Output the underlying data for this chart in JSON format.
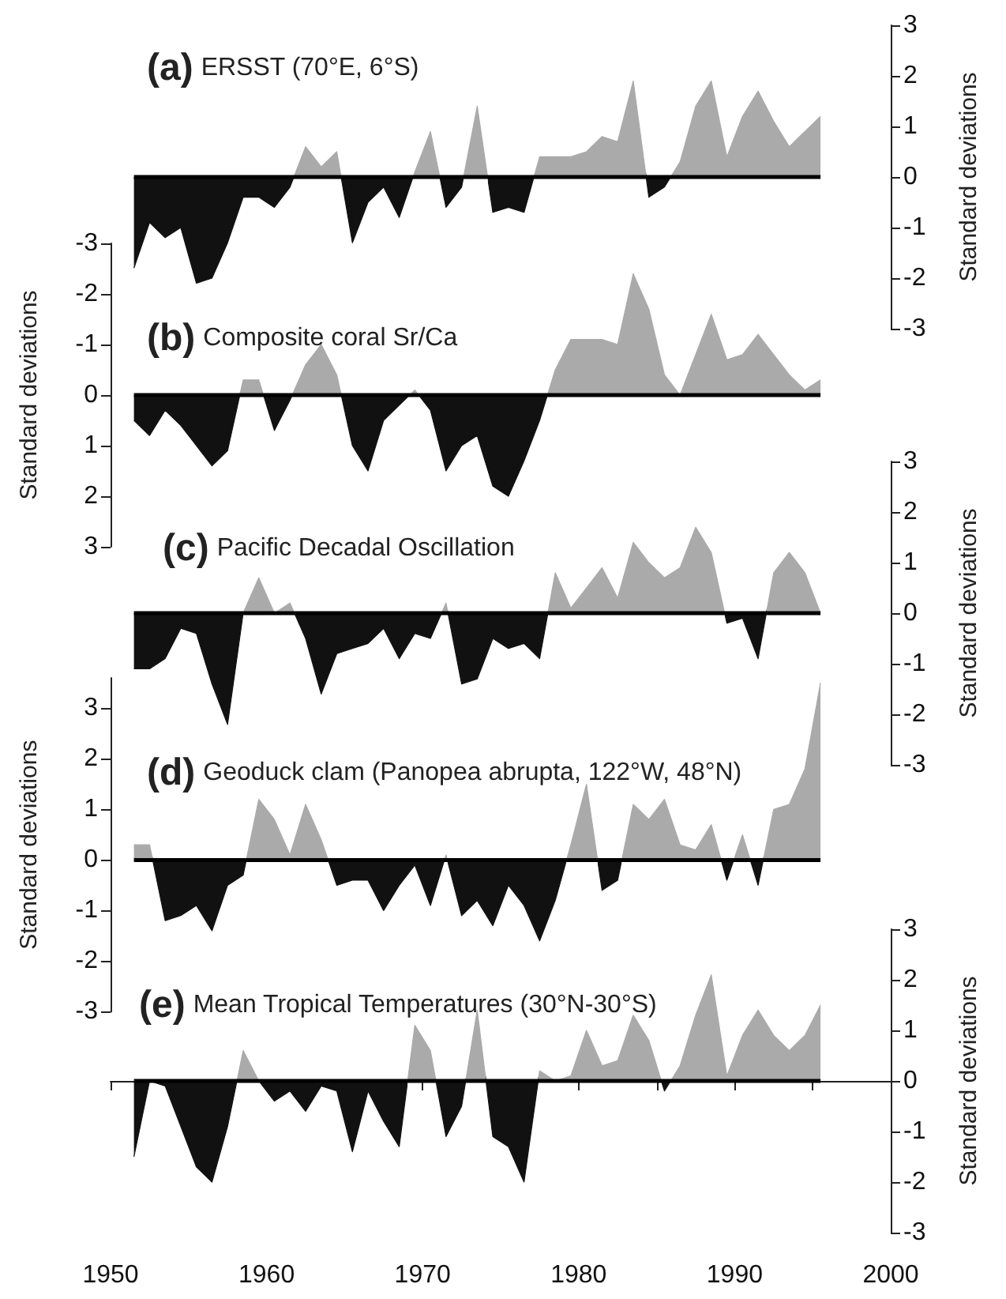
{
  "chart_data": [
    {
      "type": "area",
      "title": "(a) ERSST (70°E, 6°S)",
      "y2label": "Standard deviations",
      "xlim": [
        1950,
        2000
      ],
      "y2lim": [
        -3,
        3
      ],
      "y2ticks": [
        -3,
        -2,
        -1,
        0,
        1,
        2,
        3
      ],
      "tick_labels": "y",
      "x": [
        1951.5,
        1952.5,
        1953.5,
        1954.5,
        1955.5,
        1956.5,
        1957.5,
        1958.5,
        1959.5,
        1960.5,
        1961.5,
        1962.5,
        1963.5,
        1964.5,
        1965.5,
        1966.5,
        1967.5,
        1968.5,
        1969.5,
        1970.5,
        1971.5,
        1972.5,
        1973.5,
        1974.5,
        1975.5,
        1976.5,
        1977.5,
        1978.5,
        1979.5,
        1980.5,
        1981.5,
        1982.5,
        1983.5,
        1984.5,
        1985.5,
        1986.5,
        1987.5,
        1988.5,
        1989.5,
        1990.5,
        1991.5,
        1992.5,
        1993.5,
        1994.5,
        1995.5
      ],
      "series": [
        {
          "axis": "y2",
          "values": [
            -1.8,
            -0.9,
            -1.2,
            -1.0,
            -2.1,
            -2.0,
            -1.3,
            -0.4,
            -0.4,
            -0.6,
            -0.2,
            0.6,
            0.2,
            0.5,
            -1.3,
            -0.5,
            -0.2,
            -0.8,
            0.1,
            0.9,
            -0.6,
            -0.2,
            1.4,
            -0.7,
            -0.6,
            -0.7,
            0.4,
            0.4,
            0.4,
            0.5,
            0.8,
            0.7,
            1.9,
            -0.4,
            -0.2,
            0.3,
            1.4,
            1.9,
            0.4,
            1.2,
            1.7,
            1.1,
            0.6,
            0.9,
            1.2
          ],
          "colors": [
            "#111111",
            "#111111",
            "#111111",
            "#111111",
            "#111111",
            "#111111",
            "#111111",
            "#111111",
            "#111111",
            "#111111",
            "#111111",
            "#aaaaaa",
            "#aaaaaa",
            "#aaaaaa",
            "#111111",
            "#111111",
            "#111111",
            "#111111",
            "#aaaaaa",
            "#aaaaaa",
            "#111111",
            "#111111",
            "#aaaaaa",
            "#111111",
            "#111111",
            "#111111",
            "#aaaaaa",
            "#aaaaaa",
            "#aaaaaa",
            "#aaaaaa",
            "#aaaaaa",
            "#aaaaaa",
            "#aaaaaa",
            "#111111",
            "#111111",
            "#aaaaaa",
            "#aaaaaa",
            "#aaaaaa",
            "#aaaaaa",
            "#aaaaaa",
            "#aaaaaa",
            "#aaaaaa",
            "#aaaaaa",
            "#aaaaaa",
            "#aaaaaa"
          ]
        }
      ],
      "ref_lines": [
        {
          "axis": "y2",
          "value": 0,
          "color": "#000000"
        }
      ]
    },
    {
      "type": "area",
      "title": "(b) Composite coral Sr/Ca",
      "ylabel": "Standard deviations",
      "xlim": [
        1950,
        2000
      ],
      "ylim": [
        3,
        -3
      ],
      "yticks": [
        -3,
        -2,
        -1,
        0,
        1,
        2,
        3
      ],
      "tick_labels": "y",
      "x": [
        1951.5,
        1952.5,
        1953.5,
        1954.5,
        1955.5,
        1956.5,
        1957.5,
        1958.5,
        1959.5,
        1960.5,
        1961.5,
        1962.5,
        1963.5,
        1964.5,
        1965.5,
        1966.5,
        1967.5,
        1968.5,
        1969.5,
        1970.5,
        1971.5,
        1972.5,
        1973.5,
        1974.5,
        1975.5,
        1976.5,
        1977.5,
        1978.5,
        1979.5,
        1980.5,
        1981.5,
        1982.5,
        1983.5,
        1984.5,
        1985.5,
        1986.5,
        1987.5,
        1988.5,
        1989.5,
        1990.5,
        1991.5,
        1992.5,
        1993.5,
        1994.5,
        1995.5
      ],
      "series": [
        {
          "values": [
            0.5,
            0.8,
            0.3,
            0.6,
            1.0,
            1.4,
            1.1,
            -0.3,
            -0.3,
            0.7,
            0.1,
            -0.6,
            -1.0,
            -0.4,
            1.0,
            1.5,
            0.5,
            0.2,
            -0.1,
            0.3,
            1.5,
            1.0,
            0.8,
            1.8,
            2.0,
            1.3,
            0.5,
            -0.5,
            -1.1,
            -1.1,
            -1.1,
            -1.0,
            -2.4,
            -1.7,
            -0.4,
            0.0,
            -0.8,
            -1.6,
            -0.7,
            -0.8,
            -1.2,
            -0.8,
            -0.4,
            -0.1,
            -0.3
          ],
          "colors": [
            "#111111",
            "#111111",
            "#111111",
            "#111111",
            "#111111",
            "#111111",
            "#111111",
            "#aaaaaa",
            "#aaaaaa",
            "#111111",
            "#111111",
            "#aaaaaa",
            "#aaaaaa",
            "#aaaaaa",
            "#111111",
            "#111111",
            "#111111",
            "#111111",
            "#aaaaaa",
            "#111111",
            "#111111",
            "#111111",
            "#111111",
            "#111111",
            "#111111",
            "#111111",
            "#111111",
            "#aaaaaa",
            "#aaaaaa",
            "#aaaaaa",
            "#aaaaaa",
            "#aaaaaa",
            "#aaaaaa",
            "#aaaaaa",
            "#aaaaaa",
            "#aaaaaa",
            "#aaaaaa",
            "#aaaaaa",
            "#aaaaaa",
            "#aaaaaa",
            "#aaaaaa",
            "#aaaaaa",
            "#aaaaaa",
            "#aaaaaa",
            "#aaaaaa"
          ]
        }
      ],
      "ref_lines": [
        {
          "axis": "y",
          "value": 0,
          "color": "#000000"
        }
      ]
    },
    {
      "type": "area",
      "title": "(c) Pacific Decadal Oscillation",
      "y2label": "Standard deviations",
      "xlim": [
        1950,
        2000
      ],
      "y2lim": [
        -3,
        3
      ],
      "y2ticks": [
        -3,
        -2,
        -1,
        0,
        1,
        2,
        3
      ],
      "tick_labels": "y",
      "x": [
        1951.5,
        1952.5,
        1953.5,
        1954.5,
        1955.5,
        1956.5,
        1957.5,
        1958.5,
        1959.5,
        1960.5,
        1961.5,
        1962.5,
        1963.5,
        1964.5,
        1965.5,
        1966.5,
        1967.5,
        1968.5,
        1969.5,
        1970.5,
        1971.5,
        1972.5,
        1973.5,
        1974.5,
        1975.5,
        1976.5,
        1977.5,
        1978.5,
        1979.5,
        1980.5,
        1981.5,
        1982.5,
        1983.5,
        1984.5,
        1985.5,
        1986.5,
        1987.5,
        1988.5,
        1989.5,
        1990.5,
        1991.5,
        1992.5,
        1993.5,
        1994.5,
        1995.5
      ],
      "series": [
        {
          "axis": "y2",
          "values": [
            -1.1,
            -1.1,
            -0.9,
            -0.3,
            -0.4,
            -1.4,
            -2.2,
            0.0,
            0.7,
            0.0,
            0.2,
            -0.5,
            -1.6,
            -0.8,
            -0.7,
            -0.6,
            -0.3,
            -0.9,
            -0.4,
            -0.5,
            0.2,
            -1.4,
            -1.3,
            -0.5,
            -0.7,
            -0.6,
            -0.9,
            0.8,
            0.1,
            0.5,
            0.9,
            0.3,
            1.4,
            1.0,
            0.7,
            0.9,
            1.7,
            1.2,
            -0.2,
            -0.1,
            -0.9,
            0.8,
            1.2,
            0.8,
            0.0
          ],
          "colors": [
            "#111111",
            "#111111",
            "#111111",
            "#111111",
            "#111111",
            "#111111",
            "#111111",
            "#aaaaaa",
            "#aaaaaa",
            "#aaaaaa",
            "#aaaaaa",
            "#111111",
            "#111111",
            "#111111",
            "#111111",
            "#111111",
            "#111111",
            "#111111",
            "#111111",
            "#111111",
            "#aaaaaa",
            "#111111",
            "#111111",
            "#111111",
            "#111111",
            "#111111",
            "#111111",
            "#aaaaaa",
            "#aaaaaa",
            "#aaaaaa",
            "#aaaaaa",
            "#aaaaaa",
            "#aaaaaa",
            "#aaaaaa",
            "#aaaaaa",
            "#aaaaaa",
            "#aaaaaa",
            "#aaaaaa",
            "#111111",
            "#111111",
            "#111111",
            "#aaaaaa",
            "#aaaaaa",
            "#aaaaaa",
            "#aaaaaa"
          ]
        }
      ],
      "ref_lines": [
        {
          "axis": "y2",
          "value": 0,
          "color": "#000000"
        }
      ]
    },
    {
      "type": "area",
      "title": "(d) Geoduck clam (Panopea abrupta, 122°W, 48°N)",
      "ylabel": "Standard deviations",
      "xlim": [
        1950,
        2000
      ],
      "ylim": [
        -3,
        3.6
      ],
      "yticks": [
        -3,
        -2,
        -1,
        0,
        1,
        2,
        3
      ],
      "tick_labels": "y",
      "x": [
        1951.5,
        1952.5,
        1953.5,
        1954.5,
        1955.5,
        1956.5,
        1957.5,
        1958.5,
        1959.5,
        1960.5,
        1961.5,
        1962.5,
        1963.5,
        1964.5,
        1965.5,
        1966.5,
        1967.5,
        1968.5,
        1969.5,
        1970.5,
        1971.5,
        1972.5,
        1973.5,
        1974.5,
        1975.5,
        1976.5,
        1977.5,
        1978.5,
        1979.5,
        1980.5,
        1981.5,
        1982.5,
        1983.5,
        1984.5,
        1985.5,
        1986.5,
        1987.5,
        1988.5,
        1989.5,
        1990.5,
        1991.5,
        1992.5,
        1993.5,
        1994.5,
        1995.5
      ],
      "series": [
        {
          "values": [
            0.3,
            0.3,
            -1.2,
            -1.1,
            -0.9,
            -1.4,
            -0.5,
            -0.3,
            1.2,
            0.8,
            0.1,
            1.1,
            0.4,
            -0.5,
            -0.4,
            -0.4,
            -1.0,
            -0.5,
            -0.1,
            -0.9,
            0.1,
            -1.1,
            -0.8,
            -1.3,
            -0.5,
            -0.9,
            -1.6,
            -0.8,
            0.3,
            1.5,
            -0.6,
            -0.4,
            1.1,
            0.8,
            1.2,
            0.3,
            0.2,
            0.7,
            -0.4,
            0.5,
            -0.5,
            1.0,
            1.1,
            1.8,
            3.5
          ],
          "colors": [
            "#aaaaaa",
            "#aaaaaa",
            "#111111",
            "#111111",
            "#111111",
            "#111111",
            "#111111",
            "#111111",
            "#aaaaaa",
            "#aaaaaa",
            "#aaaaaa",
            "#aaaaaa",
            "#aaaaaa",
            "#111111",
            "#111111",
            "#111111",
            "#111111",
            "#111111",
            "#111111",
            "#111111",
            "#aaaaaa",
            "#111111",
            "#111111",
            "#111111",
            "#111111",
            "#111111",
            "#111111",
            "#111111",
            "#aaaaaa",
            "#aaaaaa",
            "#111111",
            "#111111",
            "#aaaaaa",
            "#aaaaaa",
            "#aaaaaa",
            "#aaaaaa",
            "#aaaaaa",
            "#aaaaaa",
            "#111111",
            "#aaaaaa",
            "#111111",
            "#aaaaaa",
            "#aaaaaa",
            "#aaaaaa",
            "#aaaaaa"
          ]
        }
      ],
      "ref_lines": [
        {
          "axis": "y",
          "value": 0,
          "color": "#000000"
        }
      ]
    },
    {
      "type": "area",
      "title": "(e) Mean Tropical Temperatures (30°N-30°S)",
      "y2label": "Standard deviations",
      "xlim": [
        1950,
        2000
      ],
      "xticks": [
        1950,
        {
          "value": 1955,
          "label": null
        },
        1960,
        {
          "value": 1965,
          "label": null
        },
        1970,
        {
          "value": 1975,
          "label": null
        },
        1980,
        {
          "value": 1985,
          "label": null
        },
        1990,
        {
          "value": 1995,
          "label": null
        },
        2000
      ],
      "y2lim": [
        -3,
        3
      ],
      "y2ticks": [
        -3,
        -2,
        -1,
        0,
        1,
        2,
        3
      ],
      "x": [
        1951.5,
        1952.5,
        1953.5,
        1954.5,
        1955.5,
        1956.5,
        1957.5,
        1958.5,
        1959.5,
        1960.5,
        1961.5,
        1962.5,
        1963.5,
        1964.5,
        1965.5,
        1966.5,
        1967.5,
        1968.5,
        1969.5,
        1970.5,
        1971.5,
        1972.5,
        1973.5,
        1974.5,
        1975.5,
        1976.5,
        1977.5,
        1978.5,
        1979.5,
        1980.5,
        1981.5,
        1982.5,
        1983.5,
        1984.5,
        1985.5,
        1986.5,
        1987.5,
        1988.5,
        1989.5,
        1990.5,
        1991.5,
        1992.5,
        1993.5,
        1994.5,
        1995.5
      ],
      "series": [
        {
          "axis": "y2",
          "values": [
            -1.5,
            0.0,
            -0.1,
            -0.9,
            -1.7,
            -2.0,
            -0.9,
            0.6,
            0.0,
            -0.4,
            -0.2,
            -0.6,
            -0.1,
            -0.2,
            -1.4,
            -0.2,
            -0.8,
            -1.3,
            1.1,
            0.6,
            -1.1,
            -0.5,
            1.4,
            -1.1,
            -1.3,
            -2.0,
            0.2,
            0.0,
            0.1,
            1.0,
            0.3,
            0.4,
            1.3,
            0.8,
            -0.2,
            0.3,
            1.3,
            2.1,
            0.1,
            0.9,
            1.4,
            0.9,
            0.6,
            0.9,
            1.5
          ],
          "colors": [
            "#111111",
            "#aaaaaa",
            "#111111",
            "#111111",
            "#111111",
            "#111111",
            "#111111",
            "#aaaaaa",
            "#aaaaaa",
            "#111111",
            "#111111",
            "#111111",
            "#111111",
            "#111111",
            "#111111",
            "#111111",
            "#111111",
            "#111111",
            "#aaaaaa",
            "#aaaaaa",
            "#111111",
            "#111111",
            "#aaaaaa",
            "#111111",
            "#111111",
            "#111111",
            "#aaaaaa",
            "#aaaaaa",
            "#aaaaaa",
            "#aaaaaa",
            "#aaaaaa",
            "#aaaaaa",
            "#aaaaaa",
            "#aaaaaa",
            "#111111",
            "#aaaaaa",
            "#aaaaaa",
            "#aaaaaa",
            "#aaaaaa",
            "#aaaaaa",
            "#aaaaaa",
            "#aaaaaa",
            "#aaaaaa",
            "#aaaaaa",
            "#aaaaaa"
          ]
        }
      ],
      "ref_lines": [
        {
          "axis": "y2",
          "value": 0,
          "color": "#000000"
        }
      ]
    }
  ]
}
